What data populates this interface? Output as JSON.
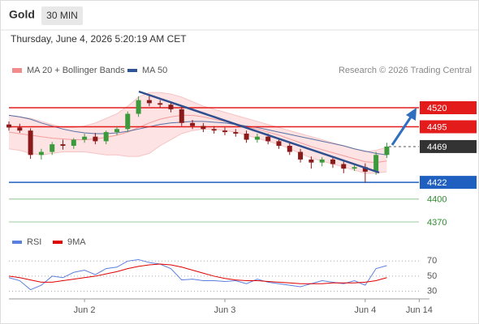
{
  "header": {
    "title": "Gold",
    "timeframe": "30 MIN",
    "timestamp": "Thursday, June 4, 2026 5:20:19 AM CET"
  },
  "chart_data": [
    {
      "type": "candlestick",
      "credit": "Research © 2026 Trading Central",
      "up_color": "#3c9a3c",
      "down_color": "#8b1a1a",
      "open": [
        4498,
        4494,
        4490,
        4458,
        4462,
        4472,
        4470,
        4478,
        4482,
        4476,
        4488,
        4492,
        4512,
        4530,
        4526,
        4524,
        4518,
        4500,
        4496,
        4492,
        4490,
        4488,
        4486,
        4478,
        4482,
        4476,
        4470,
        4462,
        4452,
        4448,
        4452,
        4446,
        4440,
        4442,
        4436,
        4458
      ],
      "high": [
        4502,
        4499,
        4493,
        4466,
        4475,
        4478,
        4480,
        4486,
        4487,
        4490,
        4495,
        4515,
        4535,
        4536,
        4530,
        4528,
        4521,
        4504,
        4500,
        4496,
        4494,
        4492,
        4490,
        4486,
        4486,
        4480,
        4474,
        4466,
        4456,
        4455,
        4456,
        4450,
        4446,
        4447,
        4462,
        4474
      ],
      "low": [
        4490,
        4487,
        4453,
        4452,
        4458,
        4465,
        4466,
        4474,
        4472,
        4472,
        4484,
        4488,
        4508,
        4522,
        4520,
        4514,
        4496,
        4492,
        4488,
        4486,
        4484,
        4482,
        4474,
        4474,
        4472,
        4466,
        4458,
        4448,
        4440,
        4443,
        4441,
        4434,
        4437,
        4422,
        4432,
        4454
      ],
      "close": [
        4494,
        4490,
        4458,
        4462,
        4472,
        4470,
        4478,
        4482,
        4476,
        4488,
        4492,
        4512,
        4530,
        4526,
        4524,
        4518,
        4500,
        4496,
        4492,
        4490,
        4488,
        4486,
        4478,
        4482,
        4476,
        4470,
        4462,
        4452,
        4448,
        4452,
        4446,
        4440,
        4442,
        4436,
        4458,
        4469
      ],
      "overlays": [
        {
          "name": "MA 20 + Bollinger Bands",
          "color": "#f28b8b",
          "band_color": "#fde3e3",
          "values": [
            4488,
            4486,
            4484,
            4482,
            4480,
            4479,
            4478,
            4478,
            4479,
            4481,
            4484,
            4488,
            4494,
            4500,
            4505,
            4508,
            4510,
            4510,
            4508,
            4505,
            4502,
            4499,
            4495,
            4492,
            4488,
            4484,
            4479,
            4474,
            4469,
            4465,
            4461,
            4457,
            4453,
            4449,
            4448,
            4450
          ],
          "upper": [
            4510,
            4508,
            4506,
            4502,
            4498,
            4494,
            4494,
            4496,
            4500,
            4506,
            4512,
            4522,
            4534,
            4540,
            4540,
            4538,
            4534,
            4528,
            4522,
            4518,
            4514,
            4510,
            4506,
            4502,
            4498,
            4494,
            4490,
            4486,
            4482,
            4478,
            4474,
            4470,
            4466,
            4462,
            4464,
            4468
          ],
          "lower": [
            4466,
            4464,
            4460,
            4458,
            4460,
            4462,
            4462,
            4462,
            4460,
            4458,
            4458,
            4456,
            4456,
            4460,
            4470,
            4478,
            4486,
            4490,
            4492,
            4492,
            4490,
            4488,
            4484,
            4480,
            4476,
            4472,
            4466,
            4460,
            4454,
            4450,
            4446,
            4442,
            4438,
            4434,
            4434,
            4436
          ]
        },
        {
          "name": "MA 50",
          "color": "#2f5597",
          "values": [
            4510,
            4508,
            4505,
            4500,
            4496,
            4492,
            4489,
            4487,
            4486,
            4486,
            4487,
            4489,
            4492,
            4495,
            4498,
            4500,
            4501,
            4502,
            4502,
            4501,
            4500,
            4498,
            4496,
            4494,
            4491,
            4488,
            4485,
            4482,
            4479,
            4476,
            4473,
            4470,
            4466,
            4463,
            4460,
            4458
          ]
        }
      ],
      "levels": [
        {
          "value": 4520,
          "color": "#e31b1b",
          "box": true
        },
        {
          "value": 4495,
          "color": "#e31b1b",
          "box": true
        },
        {
          "value": 4469,
          "color": "#333333",
          "box": true,
          "dash": true
        },
        {
          "value": 4422,
          "color": "#1f5fbf",
          "box": true
        },
        {
          "value": 4400,
          "color": "#2e8b2e",
          "box": false
        },
        {
          "value": 4370,
          "color": "#2e8b2e",
          "box": false
        }
      ],
      "xlim": [
        0,
        38.5
      ],
      "ylim": [
        4360,
        4545
      ]
    },
    {
      "type": "line",
      "series": [
        {
          "name": "RSI",
          "color": "#5b7fde",
          "values": [
            48,
            44,
            32,
            38,
            50,
            48,
            55,
            58,
            52,
            60,
            62,
            70,
            72,
            68,
            66,
            60,
            45,
            46,
            44,
            44,
            43,
            44,
            40,
            46,
            42,
            40,
            38,
            36,
            40,
            44,
            42,
            40,
            44,
            38,
            60,
            64
          ]
        },
        {
          "name": "9MA",
          "color": "#e00000",
          "values": [
            50,
            48,
            45,
            42,
            42,
            44,
            46,
            48,
            50,
            53,
            56,
            60,
            63,
            65,
            66,
            65,
            62,
            58,
            54,
            50,
            47,
            45,
            44,
            44,
            43,
            42,
            41,
            40,
            40,
            40,
            41,
            41,
            41,
            42,
            44,
            48
          ]
        }
      ],
      "xlim": [
        0,
        38.5
      ],
      "ylim": [
        22,
        80
      ],
      "yticks": [
        30,
        50,
        70
      ],
      "xticks": [
        {
          "value": 7,
          "label": "Jun 2"
        },
        {
          "value": 20,
          "label": "Jun 3"
        },
        {
          "value": 33,
          "label": "Jun 4"
        },
        {
          "value": 38,
          "label": "Jun 14"
        }
      ]
    }
  ]
}
